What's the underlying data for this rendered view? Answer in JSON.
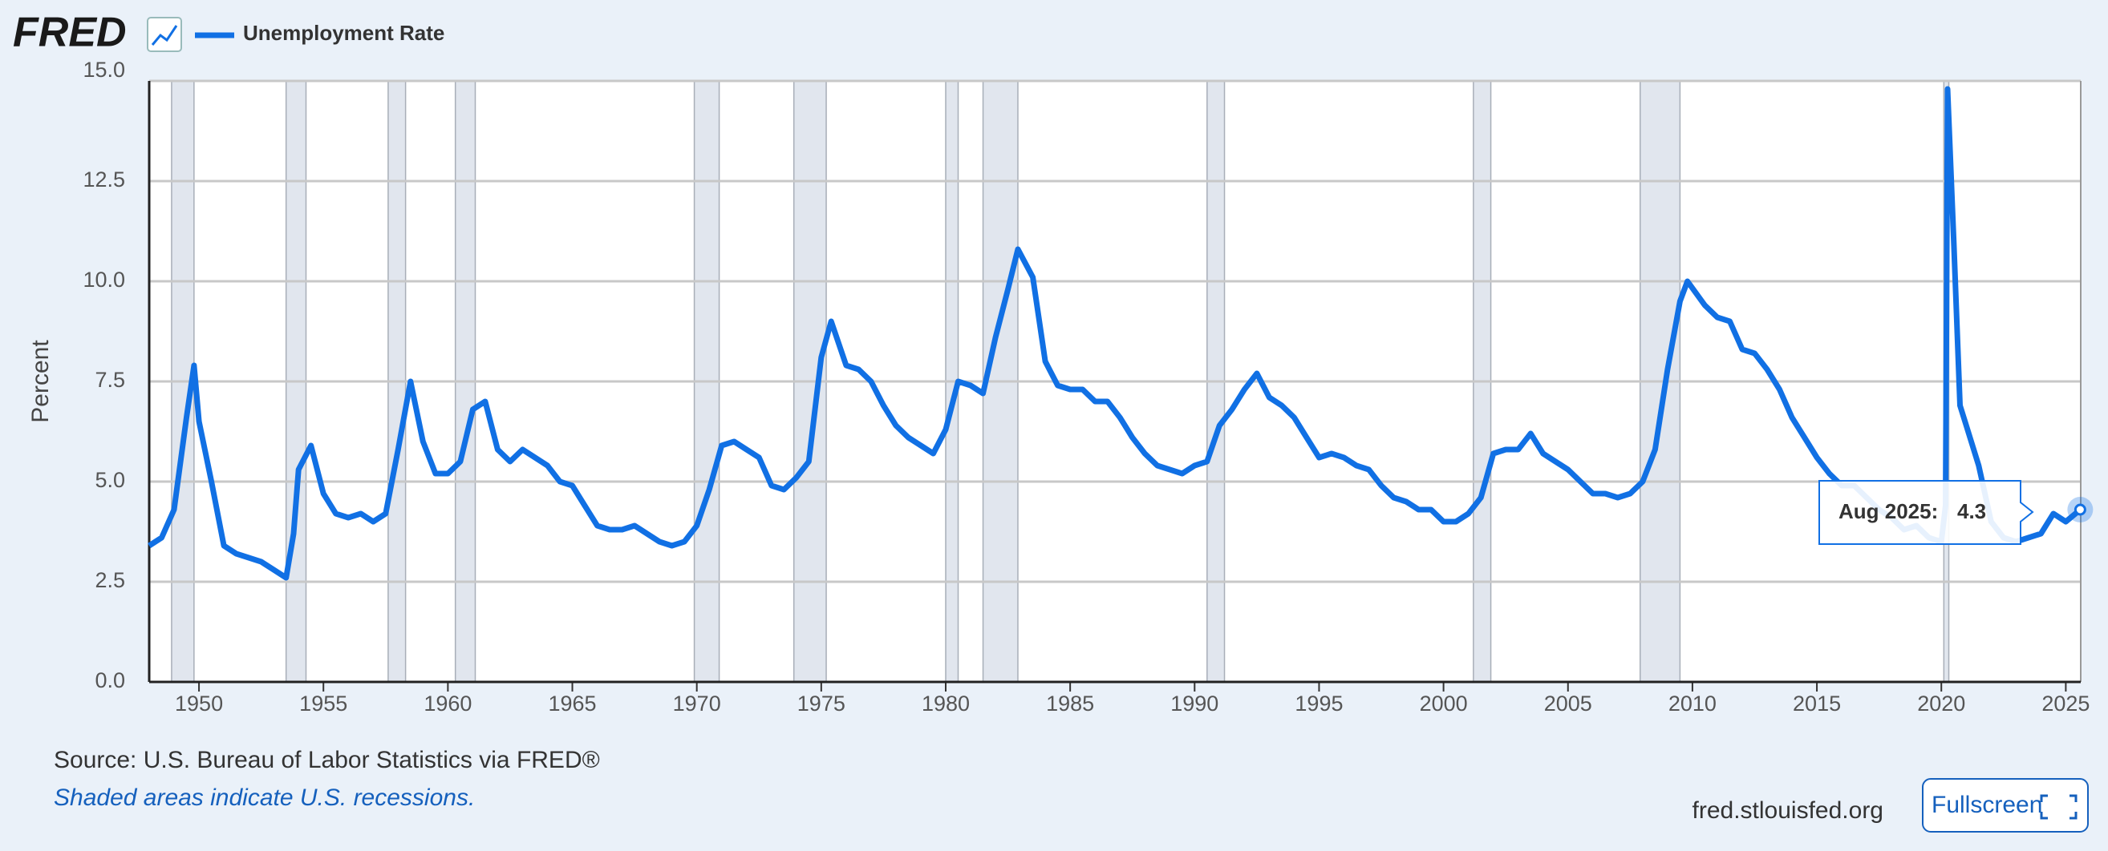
{
  "chart_data": {
    "type": "line",
    "logo": "FRED",
    "ylabel": "Percent",
    "source": "Source: U.S. Bureau of Labor Statistics via FRED®",
    "note": "Shaded areas indicate U.S. recessions.",
    "site": "fred.stlouisfed.org",
    "button": "Fullscreen",
    "tooltip_label": "Aug 2025:",
    "xlim": [
      1948,
      2025.6
    ],
    "xticks": [
      1950,
      1955,
      1960,
      1965,
      1970,
      1975,
      1980,
      1985,
      1990,
      1995,
      2000,
      2005,
      2010,
      2015,
      2020,
      2025
    ],
    "ylim": [
      0,
      15
    ],
    "yticks": [
      {
        "value": 0,
        "label": "0.0"
      },
      2.5,
      {
        "value": 5,
        "label": "5.0"
      },
      7.5,
      {
        "value": 10,
        "label": "10.0"
      },
      12.5,
      {
        "value": 15,
        "label": "15.0"
      }
    ],
    "grid": true,
    "recessions": [
      [
        1948.9,
        1949.8
      ],
      [
        1953.5,
        1954.3
      ],
      [
        1957.6,
        1958.3
      ],
      [
        1960.3,
        1961.1
      ],
      [
        1969.9,
        1970.9
      ],
      [
        1973.9,
        1975.2
      ],
      [
        1980.0,
        1980.5
      ],
      [
        1981.5,
        1982.9
      ],
      [
        1990.5,
        1991.2
      ],
      [
        2001.2,
        2001.9
      ],
      [
        2007.9,
        2009.5
      ],
      [
        2020.1,
        2020.3
      ]
    ],
    "x": [
      1948.0,
      1948.5,
      1949.0,
      1949.5,
      1949.8,
      1950.0,
      1950.5,
      1951.0,
      1951.5,
      1952.0,
      1952.5,
      1953.0,
      1953.5,
      1953.8,
      1954.0,
      1954.5,
      1955.0,
      1955.5,
      1956.0,
      1956.5,
      1957.0,
      1957.5,
      1958.0,
      1958.5,
      1959.0,
      1959.5,
      1960.0,
      1960.5,
      1961.0,
      1961.5,
      1962.0,
      1962.5,
      1963.0,
      1963.5,
      1964.0,
      1964.5,
      1965.0,
      1965.5,
      1966.0,
      1966.5,
      1967.0,
      1967.5,
      1968.0,
      1968.5,
      1969.0,
      1969.5,
      1970.0,
      1970.5,
      1971.0,
      1971.5,
      1972.0,
      1972.5,
      1973.0,
      1973.5,
      1974.0,
      1974.5,
      1975.0,
      1975.4,
      1976.0,
      1976.5,
      1977.0,
      1977.5,
      1978.0,
      1978.5,
      1979.0,
      1979.5,
      1980.0,
      1980.5,
      1981.0,
      1981.5,
      1982.0,
      1982.5,
      1982.9,
      1983.5,
      1984.0,
      1984.5,
      1985.0,
      1985.5,
      1986.0,
      1986.5,
      1987.0,
      1987.5,
      1988.0,
      1988.5,
      1989.0,
      1989.5,
      1990.0,
      1990.5,
      1991.0,
      1991.5,
      1992.0,
      1992.5,
      1993.0,
      1993.5,
      1994.0,
      1994.5,
      1995.0,
      1995.5,
      1996.0,
      1996.5,
      1997.0,
      1997.5,
      1998.0,
      1998.5,
      1999.0,
      1999.5,
      2000.0,
      2000.5,
      2001.0,
      2001.5,
      2002.0,
      2002.5,
      2003.0,
      2003.5,
      2004.0,
      2004.5,
      2005.0,
      2005.5,
      2006.0,
      2006.5,
      2007.0,
      2007.5,
      2008.0,
      2008.5,
      2009.0,
      2009.5,
      2009.8,
      2010.5,
      2011.0,
      2011.5,
      2012.0,
      2012.5,
      2013.0,
      2013.5,
      2014.0,
      2014.5,
      2015.0,
      2015.5,
      2016.0,
      2016.5,
      2017.0,
      2017.5,
      2018.0,
      2018.5,
      2019.0,
      2019.5,
      2020.0,
      2020.17,
      2020.25,
      2020.5,
      2020.75,
      2021.0,
      2021.5,
      2022.0,
      2022.5,
      2023.0,
      2023.5,
      2024.0,
      2024.5,
      2025.0,
      2025.58
    ],
    "series": [
      {
        "name": "Unemployment Rate",
        "color": "#1170e4",
        "values": [
          3.4,
          3.6,
          4.3,
          6.6,
          7.9,
          6.5,
          5.0,
          3.4,
          3.2,
          3.1,
          3.0,
          2.8,
          2.6,
          3.7,
          5.3,
          5.9,
          4.7,
          4.2,
          4.1,
          4.2,
          4.0,
          4.2,
          5.8,
          7.5,
          6.0,
          5.2,
          5.2,
          5.5,
          6.8,
          7.0,
          5.8,
          5.5,
          5.8,
          5.6,
          5.4,
          5.0,
          4.9,
          4.4,
          3.9,
          3.8,
          3.8,
          3.9,
          3.7,
          3.5,
          3.4,
          3.5,
          3.9,
          4.8,
          5.9,
          6.0,
          5.8,
          5.6,
          4.9,
          4.8,
          5.1,
          5.5,
          8.1,
          9.0,
          7.9,
          7.8,
          7.5,
          6.9,
          6.4,
          6.1,
          5.9,
          5.7,
          6.3,
          7.5,
          7.4,
          7.2,
          8.6,
          9.8,
          10.8,
          10.1,
          8.0,
          7.4,
          7.3,
          7.3,
          7.0,
          7.0,
          6.6,
          6.1,
          5.7,
          5.4,
          5.3,
          5.2,
          5.4,
          5.5,
          6.4,
          6.8,
          7.3,
          7.7,
          7.1,
          6.9,
          6.6,
          6.1,
          5.6,
          5.7,
          5.6,
          5.4,
          5.3,
          4.9,
          4.6,
          4.5,
          4.3,
          4.3,
          4.0,
          4.0,
          4.2,
          4.6,
          5.7,
          5.8,
          5.8,
          6.2,
          5.7,
          5.5,
          5.3,
          5.0,
          4.7,
          4.7,
          4.6,
          4.7,
          5.0,
          5.8,
          7.8,
          9.5,
          10.0,
          9.4,
          9.1,
          9.0,
          8.3,
          8.2,
          7.8,
          7.3,
          6.6,
          6.1,
          5.6,
          5.2,
          4.9,
          4.9,
          4.6,
          4.3,
          4.1,
          3.8,
          3.9,
          3.6,
          3.5,
          4.4,
          14.8,
          11.0,
          6.9,
          6.4,
          5.4,
          4.0,
          3.6,
          3.5,
          3.6,
          3.7,
          4.2,
          4.0,
          4.3
        ]
      }
    ]
  }
}
